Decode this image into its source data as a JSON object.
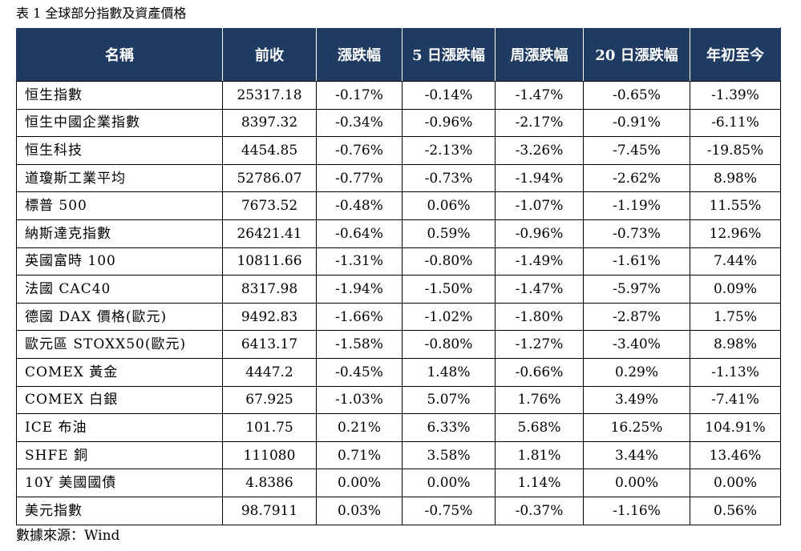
{
  "caption": "表 1 全球部分指數及資產價格",
  "table": {
    "headers": [
      "名稱",
      "前收",
      "漲跌幅",
      "5 日漲跌幅",
      "周漲跌幅",
      "20 日漲跌幅",
      "年初至今"
    ],
    "rows": [
      [
        "恒生指數",
        "25317.18",
        "-0.17%",
        "-0.14%",
        "-1.47%",
        "-0.65%",
        "-1.39%"
      ],
      [
        "恒生中國企業指數",
        "8397.32",
        "-0.34%",
        "-0.96%",
        "-2.17%",
        "-0.91%",
        "-6.11%"
      ],
      [
        "恒生科技",
        "4454.85",
        "-0.76%",
        "-2.13%",
        "-3.26%",
        "-7.45%",
        "-19.85%"
      ],
      [
        "道瓊斯工業平均",
        "52786.07",
        "-0.77%",
        "-0.73%",
        "-1.94%",
        "-2.62%",
        "8.98%"
      ],
      [
        "標普 500",
        "7673.52",
        "-0.48%",
        "0.06%",
        "-1.07%",
        "-1.19%",
        "11.55%"
      ],
      [
        "納斯達克指數",
        "26421.41",
        "-0.64%",
        "0.59%",
        "-0.96%",
        "-0.73%",
        "12.96%"
      ],
      [
        "英國富時 100",
        "10811.66",
        "-1.31%",
        "-0.80%",
        "-1.49%",
        "-1.61%",
        "7.44%"
      ],
      [
        "法國 CAC40",
        "8317.98",
        "-1.94%",
        "-1.50%",
        "-1.47%",
        "-5.97%",
        "0.09%"
      ],
      [
        "德國 DAX 價格(歐元)",
        "9492.83",
        "-1.66%",
        "-1.02%",
        "-1.80%",
        "-2.87%",
        "1.75%"
      ],
      [
        "歐元區 STOXX50(歐元)",
        "6413.17",
        "-1.58%",
        "-0.80%",
        "-1.27%",
        "-3.40%",
        "8.98%"
      ],
      [
        "COMEX 黃金",
        "4447.2",
        "-0.45%",
        "1.48%",
        "-0.66%",
        "0.29%",
        "-1.13%"
      ],
      [
        "COMEX 白銀",
        "67.925",
        "-1.03%",
        "5.07%",
        "1.76%",
        "3.49%",
        "-7.41%"
      ],
      [
        "ICE 布油",
        "101.75",
        "0.21%",
        "6.33%",
        "5.68%",
        "16.25%",
        "104.91%"
      ],
      [
        "SHFE 銅",
        "111080",
        "0.71%",
        "3.58%",
        "1.81%",
        "3.44%",
        "13.46%"
      ],
      [
        "10Y 美國國債",
        "4.8386",
        "0.00%",
        "0.00%",
        "1.14%",
        "0.00%",
        "0.00%"
      ],
      [
        "美元指數",
        "98.7911",
        "0.03%",
        "-0.75%",
        "-0.37%",
        "-1.16%",
        "0.56%"
      ]
    ]
  },
  "source": "數據來源：Wind",
  "colors": {
    "header_background": "#1f3b62",
    "header_text": "#ffffff",
    "grid_lines": "#000000"
  }
}
